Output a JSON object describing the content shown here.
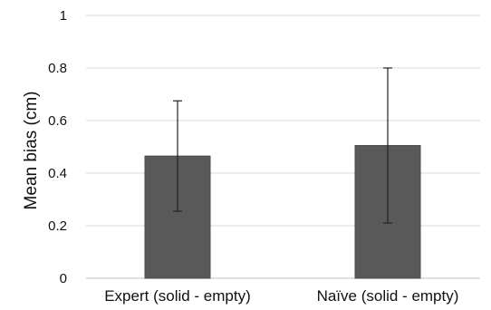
{
  "chart_data": {
    "type": "bar",
    "title": "",
    "xlabel": "",
    "ylabel": "Mean bias (cm)",
    "categories": [
      "Expert (solid - empty)",
      "Naïve (solid - empty)"
    ],
    "values": [
      0.465,
      0.505
    ],
    "error_bars": [
      {
        "low": 0.255,
        "high": 0.675
      },
      {
        "low": 0.21,
        "high": 0.8
      }
    ],
    "ylim": [
      0,
      1
    ],
    "yticks": [
      "0",
      "0.2",
      "0.4",
      "0.6",
      "0.8",
      "1"
    ],
    "grid": true,
    "legend": "none",
    "colors": {
      "bar": "#595959",
      "bar_edge": "#4a4a4a",
      "gridline": "#d9d9d9",
      "axis": "#bfbfbf",
      "error_bar": "#222222"
    }
  }
}
